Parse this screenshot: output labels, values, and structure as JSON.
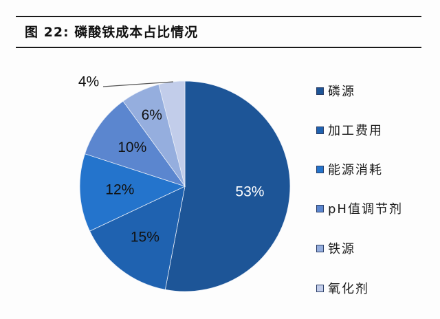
{
  "header": {
    "figure_prefix": "图 22:",
    "title": "磷酸铁成本占比情况"
  },
  "chart_data": {
    "type": "pie",
    "title": "磷酸铁成本占比情况",
    "figure_number": "图 22",
    "start_angle": "12 o'clock",
    "direction": "clockwise",
    "legend_position": "right",
    "categories": [
      "磷源",
      "加工费用",
      "能源消耗",
      "pH值调节剂",
      "铁源",
      "氧化剂"
    ],
    "values": [
      53,
      15,
      12,
      10,
      6,
      4
    ],
    "unit": "%",
    "data_labels": [
      "53%",
      "15%",
      "12%",
      "10%",
      "6%",
      "4%"
    ],
    "colors": [
      "#1d5597",
      "#1f62b0",
      "#2474cc",
      "#5b86cf",
      "#95aede",
      "#c2cdea"
    ]
  },
  "legend": {
    "items": [
      {
        "label": "磷源",
        "color": "#1d5597"
      },
      {
        "label": "加工费用",
        "color": "#1f62b0"
      },
      {
        "label": "能源消耗",
        "color": "#2474cc"
      },
      {
        "label": "pH值调节剂",
        "color": "#5b86cf"
      },
      {
        "label": "铁源",
        "color": "#95aede"
      },
      {
        "label": "氧化剂",
        "color": "#c2cdea"
      }
    ]
  }
}
